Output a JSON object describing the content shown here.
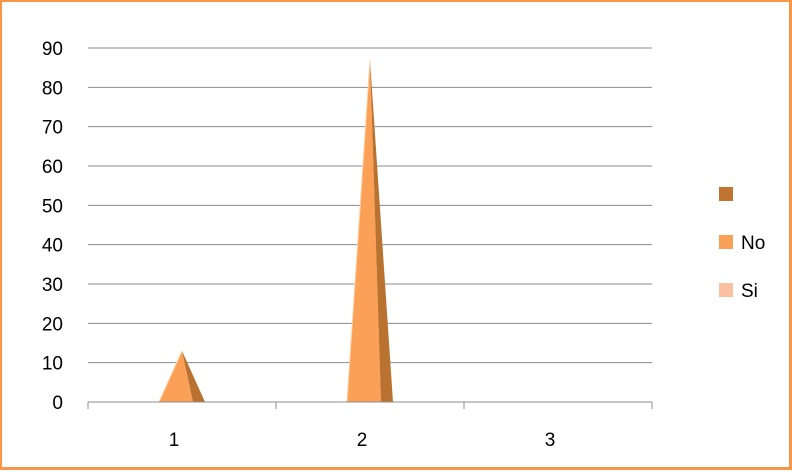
{
  "chart_data": {
    "type": "area",
    "categories": [
      "1",
      "2",
      "3"
    ],
    "y_ticks": [
      "0",
      "10",
      "20",
      "30",
      "40",
      "50",
      "60",
      "70",
      "80",
      "90"
    ],
    "ylim": [
      0,
      90
    ],
    "grid": true,
    "legend_position": "right",
    "series": [
      {
        "name": "",
        "values": [
          0,
          0,
          0
        ],
        "color": "#C0742F"
      },
      {
        "name": "No",
        "values": [
          13,
          87,
          0
        ],
        "color": "#FBA057"
      },
      {
        "name": "Si",
        "values": [
          0,
          0,
          0
        ],
        "color": "#FAC1A0"
      }
    ]
  }
}
